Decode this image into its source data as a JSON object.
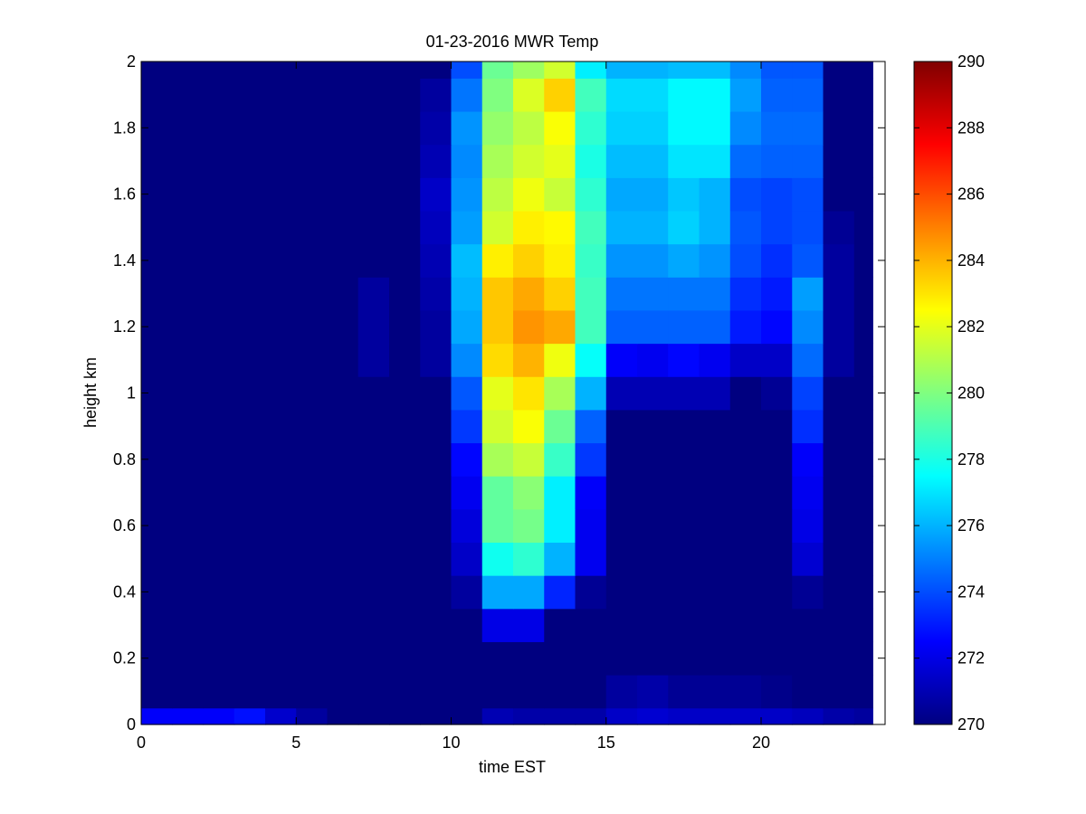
{
  "chart_data": {
    "type": "heatmap",
    "title": "01-23-2016 MWR Temp",
    "xlabel": "time EST",
    "ylabel": "height km",
    "xlim": [
      0,
      24
    ],
    "ylim": [
      0,
      2
    ],
    "xticks": [
      0,
      5,
      10,
      15,
      20
    ],
    "yticks": [
      0,
      0.2,
      0.4,
      0.6,
      0.8,
      1,
      1.2,
      1.4,
      1.6,
      1.8,
      2
    ],
    "x_edges": [
      0,
      1,
      2,
      3,
      4,
      5,
      6,
      7,
      8,
      9,
      10,
      11,
      12,
      13,
      14,
      15,
      16,
      17,
      18,
      19,
      20,
      21,
      22,
      23,
      23.6
    ],
    "y_edges": [
      0,
      0.05,
      0.15,
      0.25,
      0.35,
      0.45,
      0.55,
      0.65,
      0.75,
      0.85,
      0.95,
      1.05,
      1.15,
      1.25,
      1.35,
      1.45,
      1.55,
      1.65,
      1.75,
      1.85,
      1.95,
      2.0
    ],
    "colormap": "jet",
    "colorbar": {
      "range": [
        270,
        290
      ],
      "ticks": [
        270,
        272,
        274,
        276,
        278,
        280,
        282,
        284,
        286,
        288,
        290
      ]
    },
    "z_unit_note": "",
    "values": [
      [
        272.4,
        272.4,
        272.4,
        272.8,
        271.5,
        270.6,
        270,
        270,
        270,
        270,
        270,
        271,
        270.8,
        270.8,
        270.8,
        271.4,
        271.6,
        271.4,
        271.4,
        271.4,
        271.4,
        271.2,
        270.8,
        270.6
      ],
      [
        270,
        270,
        270,
        270,
        270,
        270,
        270,
        270,
        270,
        270,
        270,
        270,
        270,
        270,
        270,
        270.6,
        270.8,
        270.4,
        270.4,
        270.4,
        270.2,
        270,
        270,
        270
      ],
      [
        270,
        270,
        270,
        270,
        270,
        270,
        270,
        270,
        270,
        270,
        270,
        270,
        270,
        270,
        270,
        270,
        270,
        270,
        270,
        270,
        270,
        270,
        270,
        270
      ],
      [
        270,
        270,
        270,
        270,
        270,
        270,
        270,
        270,
        270,
        270,
        270,
        272,
        272,
        270,
        270,
        270,
        270,
        270,
        270,
        270,
        270,
        270,
        270,
        270
      ],
      [
        270,
        270,
        270,
        270,
        270,
        270,
        270,
        270,
        270,
        270,
        270.6,
        275.8,
        275.8,
        273.2,
        270.4,
        270,
        270,
        270,
        270,
        270,
        270,
        270.4,
        270,
        270
      ],
      [
        270,
        270,
        270,
        270,
        270,
        270,
        270,
        270,
        270,
        270,
        271.4,
        277.8,
        278.4,
        276,
        272.2,
        270,
        270,
        270,
        270,
        270,
        270,
        271.6,
        270,
        270
      ],
      [
        270,
        270,
        270,
        270,
        270,
        270,
        270,
        270,
        270,
        270,
        271.8,
        279.4,
        279.8,
        277.2,
        272.2,
        270,
        270,
        270,
        270,
        270,
        270,
        272,
        270,
        270
      ],
      [
        270,
        270,
        270,
        270,
        270,
        270,
        270,
        270,
        270,
        270,
        272.2,
        279.4,
        280.2,
        277.2,
        272.4,
        270,
        270,
        270,
        270,
        270,
        270,
        272.2,
        270,
        270
      ],
      [
        270,
        270,
        270,
        270,
        270,
        270,
        270,
        270,
        270,
        270,
        272.6,
        280.8,
        281.4,
        278.6,
        273.6,
        270,
        270,
        270,
        270,
        270,
        270,
        272.4,
        270,
        270
      ],
      [
        270,
        270,
        270,
        270,
        270,
        270,
        270,
        270,
        270,
        270,
        273.6,
        281.6,
        282.4,
        279.6,
        274.4,
        270,
        270,
        270,
        270,
        270,
        270,
        273.4,
        270,
        270
      ],
      [
        270,
        270,
        270,
        270,
        270,
        270,
        270,
        270,
        270,
        270,
        274.2,
        282,
        283,
        280.8,
        276,
        271,
        271,
        271,
        271,
        270,
        270.4,
        273.8,
        270,
        270
      ],
      [
        270,
        270,
        270,
        270,
        270,
        270,
        270,
        270.6,
        270,
        270.6,
        275.2,
        283.2,
        284,
        282.2,
        277.6,
        272.4,
        272.2,
        272.6,
        272.2,
        271.4,
        271.4,
        274.6,
        270.6,
        270
      ],
      [
        270,
        270,
        270,
        270,
        270,
        270,
        270,
        270.6,
        270,
        270.6,
        275.8,
        283.6,
        284.6,
        284.2,
        278.8,
        274.4,
        274.4,
        274.4,
        274.4,
        273,
        272.6,
        275.2,
        270.6,
        270
      ],
      [
        270,
        270,
        270,
        270,
        270,
        270,
        270,
        270.6,
        270,
        270.8,
        276,
        283.6,
        284.2,
        283.4,
        278.8,
        274.8,
        274.8,
        274.8,
        274.8,
        273.4,
        273,
        275.6,
        270.6,
        270
      ],
      [
        270,
        270,
        270,
        270,
        270,
        270,
        270,
        270,
        270,
        271,
        276.2,
        282.8,
        283.4,
        282.8,
        278.6,
        275.4,
        275.4,
        275.8,
        275.4,
        274,
        273.4,
        274.2,
        270.6,
        270
      ],
      [
        270,
        270,
        270,
        270,
        270,
        270,
        270,
        270,
        270,
        271.2,
        275.6,
        281.6,
        282.8,
        282.6,
        278.8,
        276,
        276,
        276.6,
        276,
        274.2,
        273.8,
        274,
        270.4,
        270
      ],
      [
        270,
        270,
        270,
        270,
        270,
        270,
        270,
        270,
        270,
        271.4,
        275.4,
        281.2,
        282.2,
        281.4,
        278.4,
        275.8,
        275.8,
        276.4,
        276,
        274,
        273.8,
        274,
        270,
        270
      ],
      [
        270,
        270,
        270,
        270,
        270,
        270,
        270,
        270,
        270,
        271,
        275.2,
        280.8,
        281.6,
        282,
        278,
        276.2,
        276.2,
        277,
        277,
        274.6,
        274.4,
        274.4,
        270,
        270
      ],
      [
        270,
        270,
        270,
        270,
        270,
        270,
        270,
        270,
        270,
        270.8,
        275.4,
        280.4,
        281.2,
        282.4,
        278.4,
        276.6,
        276.6,
        277.4,
        277.4,
        275.2,
        274.6,
        274.6,
        270,
        270
      ],
      [
        270,
        270,
        270,
        270,
        270,
        270,
        270,
        270,
        270,
        270.6,
        274.8,
        280,
        281.8,
        283.4,
        278.8,
        276.8,
        276.8,
        277.4,
        277.4,
        275.6,
        274.4,
        274.4,
        270,
        270
      ],
      [
        270,
        270,
        270,
        270,
        270,
        270,
        270,
        270,
        270,
        270,
        274,
        279.6,
        280.6,
        281.6,
        277.2,
        276,
        276,
        276.2,
        276.2,
        275.2,
        274.2,
        274.2,
        270,
        270
      ]
    ]
  }
}
